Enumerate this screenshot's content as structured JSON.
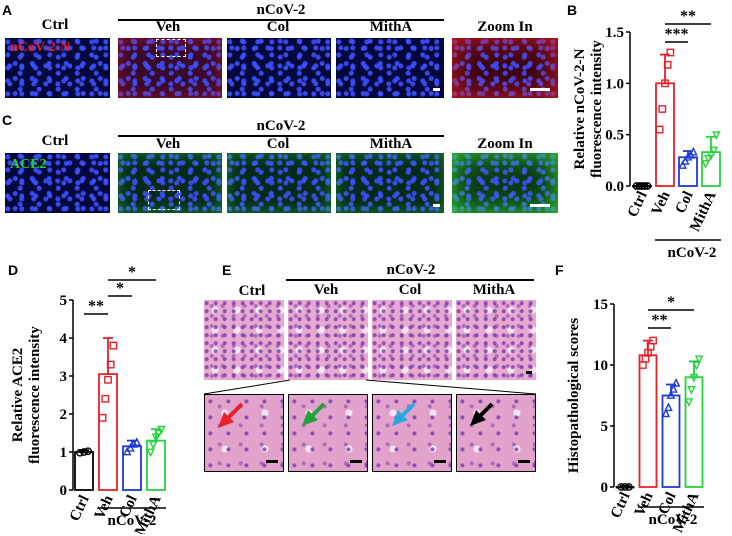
{
  "panels": {
    "A": {
      "letter": "A",
      "ctrl": "Ctrl",
      "group": "nCoV-2",
      "veh": "Veh",
      "col": "Col",
      "mitha": "MithA",
      "zoom": "Zoom In",
      "stain": "nCoV-2-N"
    },
    "C": {
      "letter": "C",
      "ctrl": "Ctrl",
      "group": "nCoV-2",
      "veh": "Veh",
      "col": "Col",
      "mitha": "MithA",
      "zoom": "Zoom In",
      "stain": "ACE2"
    },
    "E": {
      "letter": "E",
      "ctrl": "Ctrl",
      "group": "nCoV-2",
      "veh": "Veh",
      "col": "Col",
      "mitha": "MithA"
    }
  },
  "colors": {
    "ctrl": "#000000",
    "veh": "#e8202a",
    "col": "#1f3bd6",
    "mitha": "#22d33a",
    "arrow_red": "#e8202a",
    "arrow_green": "#22a33a",
    "arrow_cyan": "#29a9e0",
    "arrow_black": "#000000"
  },
  "chart_data": [
    {
      "panel": "B",
      "type": "bar",
      "categories": [
        "Ctrl",
        "Veh",
        "Col",
        "MithA"
      ],
      "values": [
        0.0,
        1.0,
        0.28,
        0.33
      ],
      "errors": [
        0.01,
        0.28,
        0.06,
        0.15
      ],
      "points": [
        [
          0,
          0,
          0,
          0,
          0
        ],
        [
          0.55,
          0.75,
          1.0,
          1.18,
          1.3
        ],
        [
          0.2,
          0.24,
          0.28,
          0.3,
          0.33
        ],
        [
          0.22,
          0.27,
          0.3,
          0.35,
          0.5
        ]
      ],
      "ylabel": "Relative nCoV-2-N fluorescence intensity",
      "ylim": [
        0,
        1.5
      ],
      "yticks": [
        "0.0",
        "0.5",
        "1.0",
        "1.5"
      ],
      "group": "nCoV-2",
      "sig": [
        "**",
        "***"
      ]
    },
    {
      "panel": "D",
      "type": "bar",
      "categories": [
        "Ctrl",
        "Veh",
        "Col",
        "MithA"
      ],
      "values": [
        1.0,
        3.05,
        1.15,
        1.3
      ],
      "errors": [
        0.05,
        0.95,
        0.15,
        0.3
      ],
      "points": [
        [
          0.98,
          1.0,
          1.02
        ],
        [
          1.9,
          2.4,
          2.9,
          3.3,
          3.8
        ],
        [
          1.0,
          1.1,
          1.2,
          1.25
        ],
        [
          1.0,
          1.2,
          1.4,
          1.5,
          1.6
        ]
      ],
      "ylabel": "Relative ACE2 fluorescence intensity",
      "ylim": [
        0,
        5
      ],
      "yticks": [
        "0",
        "1",
        "2",
        "3",
        "4",
        "5"
      ],
      "group": "nCoV-2",
      "sig": [
        "*",
        "*",
        "**"
      ]
    },
    {
      "panel": "F",
      "type": "bar",
      "categories": [
        "Ctrl",
        "Veh",
        "Col",
        "MithA"
      ],
      "values": [
        0,
        10.8,
        7.5,
        9.0
      ],
      "errors": [
        0.1,
        1.2,
        0.9,
        1.3
      ],
      "points": [
        [
          0,
          0,
          0
        ],
        [
          10,
          10.5,
          11,
          11.5,
          12
        ],
        [
          6,
          6.5,
          7.5,
          8,
          8.5
        ],
        [
          7,
          8,
          9,
          10,
          10.5
        ]
      ],
      "ylabel": "Histopathological scores",
      "ylim": [
        0,
        15
      ],
      "yticks": [
        "0",
        "5",
        "10",
        "15"
      ],
      "group": "nCoV-2",
      "sig": [
        "*",
        "**"
      ]
    }
  ]
}
